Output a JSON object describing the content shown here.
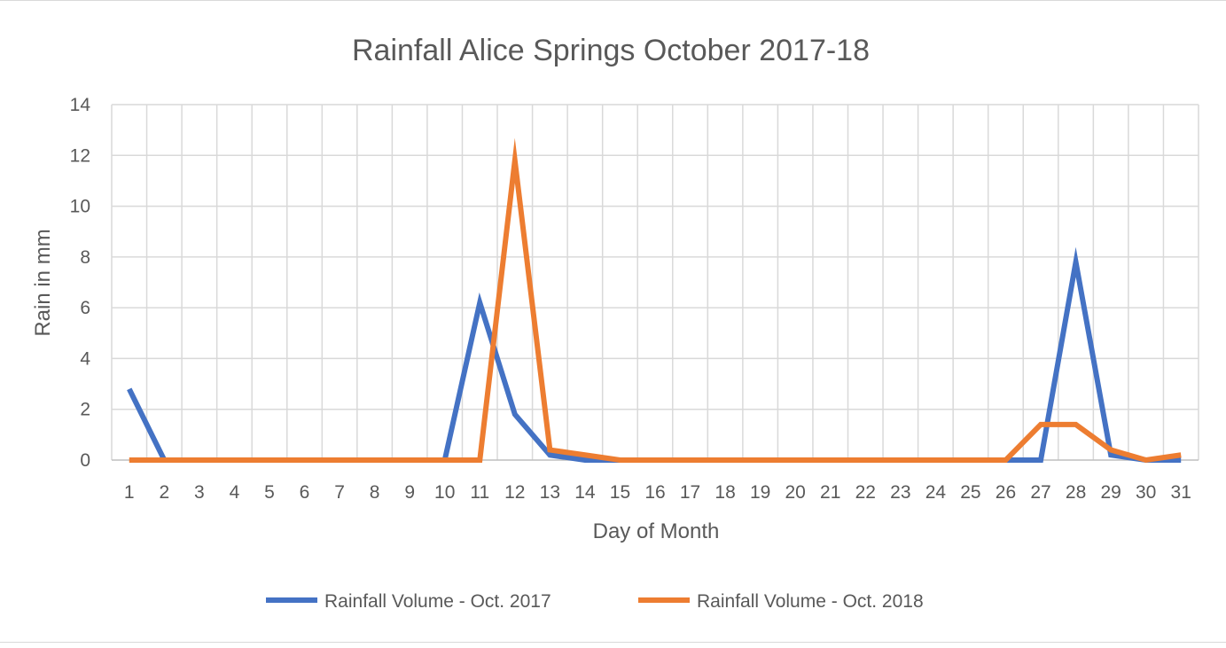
{
  "chart_data": {
    "type": "line",
    "title": "Rainfall Alice Springs October 2017-18",
    "xlabel": "Day of Month",
    "ylabel": "Rain in mm",
    "x": [
      1,
      2,
      3,
      4,
      5,
      6,
      7,
      8,
      9,
      10,
      11,
      12,
      13,
      14,
      15,
      16,
      17,
      18,
      19,
      20,
      21,
      22,
      23,
      24,
      25,
      26,
      27,
      28,
      29,
      30,
      31
    ],
    "ylim": [
      0,
      14
    ],
    "yticks": [
      0,
      2,
      4,
      6,
      8,
      10,
      12,
      14
    ],
    "grid": true,
    "legend_position": "bottom",
    "series": [
      {
        "name": "Rainfall Volume - Oct. 2017",
        "color": "#4472C4",
        "values": [
          2.8,
          0,
          0,
          0,
          0,
          0,
          0,
          0,
          0,
          0,
          6.2,
          1.8,
          0.2,
          0,
          0,
          0,
          0,
          0,
          0,
          0,
          0,
          0,
          0,
          0,
          0,
          0,
          0,
          7.8,
          0.2,
          0,
          0
        ]
      },
      {
        "name": "Rainfall Volume - Oct. 2018",
        "color": "#ED7D31",
        "values": [
          0,
          0,
          0,
          0,
          0,
          0,
          0,
          0,
          0,
          0,
          0,
          11.8,
          0.4,
          0.2,
          0,
          0,
          0,
          0,
          0,
          0,
          0,
          0,
          0,
          0,
          0,
          0,
          1.4,
          1.4,
          0.4,
          0,
          0.2
        ]
      }
    ]
  }
}
